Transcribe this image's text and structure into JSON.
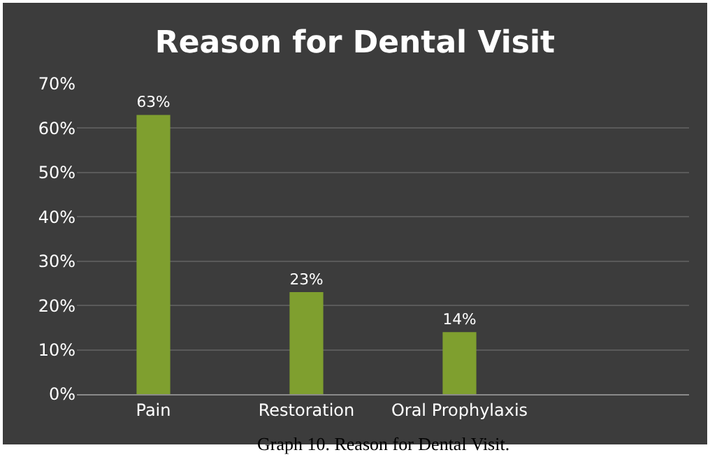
{
  "chart_data": {
    "type": "bar",
    "title": "Reason for Dental Visit",
    "categories": [
      "Pain",
      "Restoration",
      "Oral Prophylaxis",
      null
    ],
    "values": [
      63,
      23,
      14,
      null
    ],
    "color": "#7f9f2f",
    "value_labels": [
      "63%",
      "23%",
      "14%",
      null
    ],
    "ylim": [
      0,
      70
    ],
    "yticks": [
      {
        "value": 0,
        "label": "0%"
      },
      {
        "value": 10,
        "label": "10%"
      },
      {
        "value": 20,
        "label": "20%"
      },
      {
        "value": 30,
        "label": "30%"
      },
      {
        "value": 40,
        "label": "40%"
      },
      {
        "value": 50,
        "label": "50%"
      },
      {
        "value": 60,
        "label": "60%"
      },
      {
        "value": 70,
        "label": "70%"
      }
    ],
    "grid": "y",
    "annotations": [
      "Graph 10. Reason for Dental Visit."
    ]
  }
}
